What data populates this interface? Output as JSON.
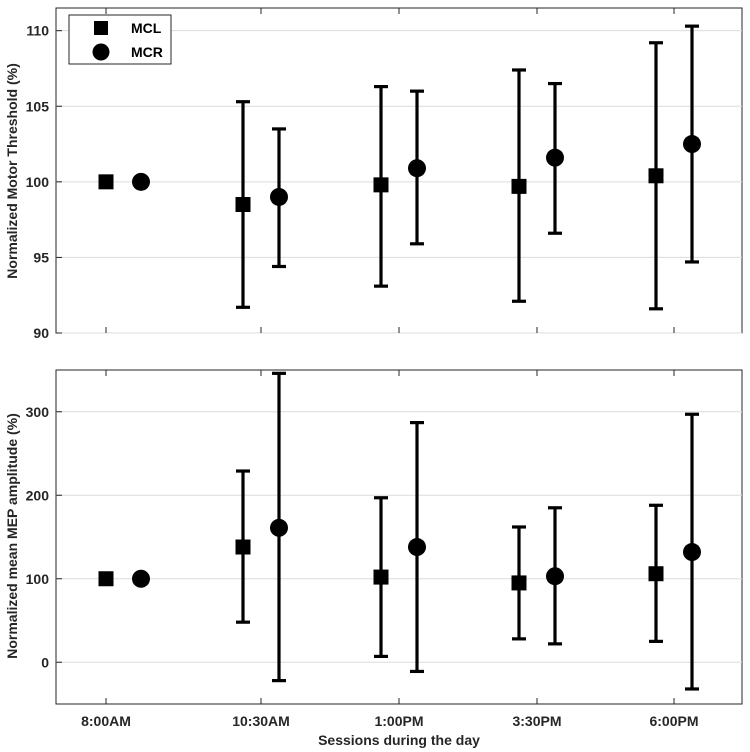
{
  "chart_data": [
    {
      "type": "scatter",
      "panel": "top",
      "ylabel": "Normalized Motor Threshold (%)",
      "xlabel": "",
      "categories": [
        "8:00AM",
        "10:30AM",
        "1:00PM",
        "3:30PM",
        "6:00PM"
      ],
      "ylim": [
        90,
        111.5
      ],
      "yticks": [
        90,
        95,
        100,
        105,
        110
      ],
      "grid": "horizontal",
      "legend": {
        "position": "top-left",
        "entries": [
          "MCL",
          "MCR"
        ]
      },
      "series": [
        {
          "name": "MCL",
          "marker": "square",
          "values": [
            100,
            98.5,
            99.8,
            99.7,
            100.4
          ],
          "err_low": [
            100,
            91.7,
            93.1,
            92.1,
            91.6
          ],
          "err_high": [
            100,
            105.3,
            106.3,
            107.4,
            109.2
          ]
        },
        {
          "name": "MCR",
          "marker": "circle",
          "values": [
            100,
            99.0,
            100.9,
            101.6,
            102.5
          ],
          "err_low": [
            100,
            94.4,
            95.9,
            96.6,
            94.7
          ],
          "err_high": [
            100,
            103.5,
            106.0,
            106.5,
            110.3
          ]
        }
      ]
    },
    {
      "type": "scatter",
      "panel": "bottom",
      "ylabel": "Normalized mean MEP amplitude (%)",
      "xlabel": "Sessions during the day",
      "categories": [
        "8:00AM",
        "10:30AM",
        "1:00PM",
        "3:30PM",
        "6:00PM"
      ],
      "ylim": [
        -50,
        350
      ],
      "yticks": [
        0,
        100,
        200,
        300
      ],
      "grid": "horizontal",
      "series": [
        {
          "name": "MCL",
          "marker": "square",
          "values": [
            100,
            138,
            102,
            95,
            106
          ],
          "err_low": [
            100,
            48,
            7,
            28,
            25
          ],
          "err_high": [
            100,
            229,
            197,
            162,
            188
          ]
        },
        {
          "name": "MCR",
          "marker": "circle",
          "values": [
            100,
            161,
            138,
            103,
            132
          ],
          "err_low": [
            100,
            -22,
            -11,
            22,
            -32
          ],
          "err_high": [
            100,
            346,
            287,
            185,
            297
          ]
        }
      ]
    }
  ]
}
